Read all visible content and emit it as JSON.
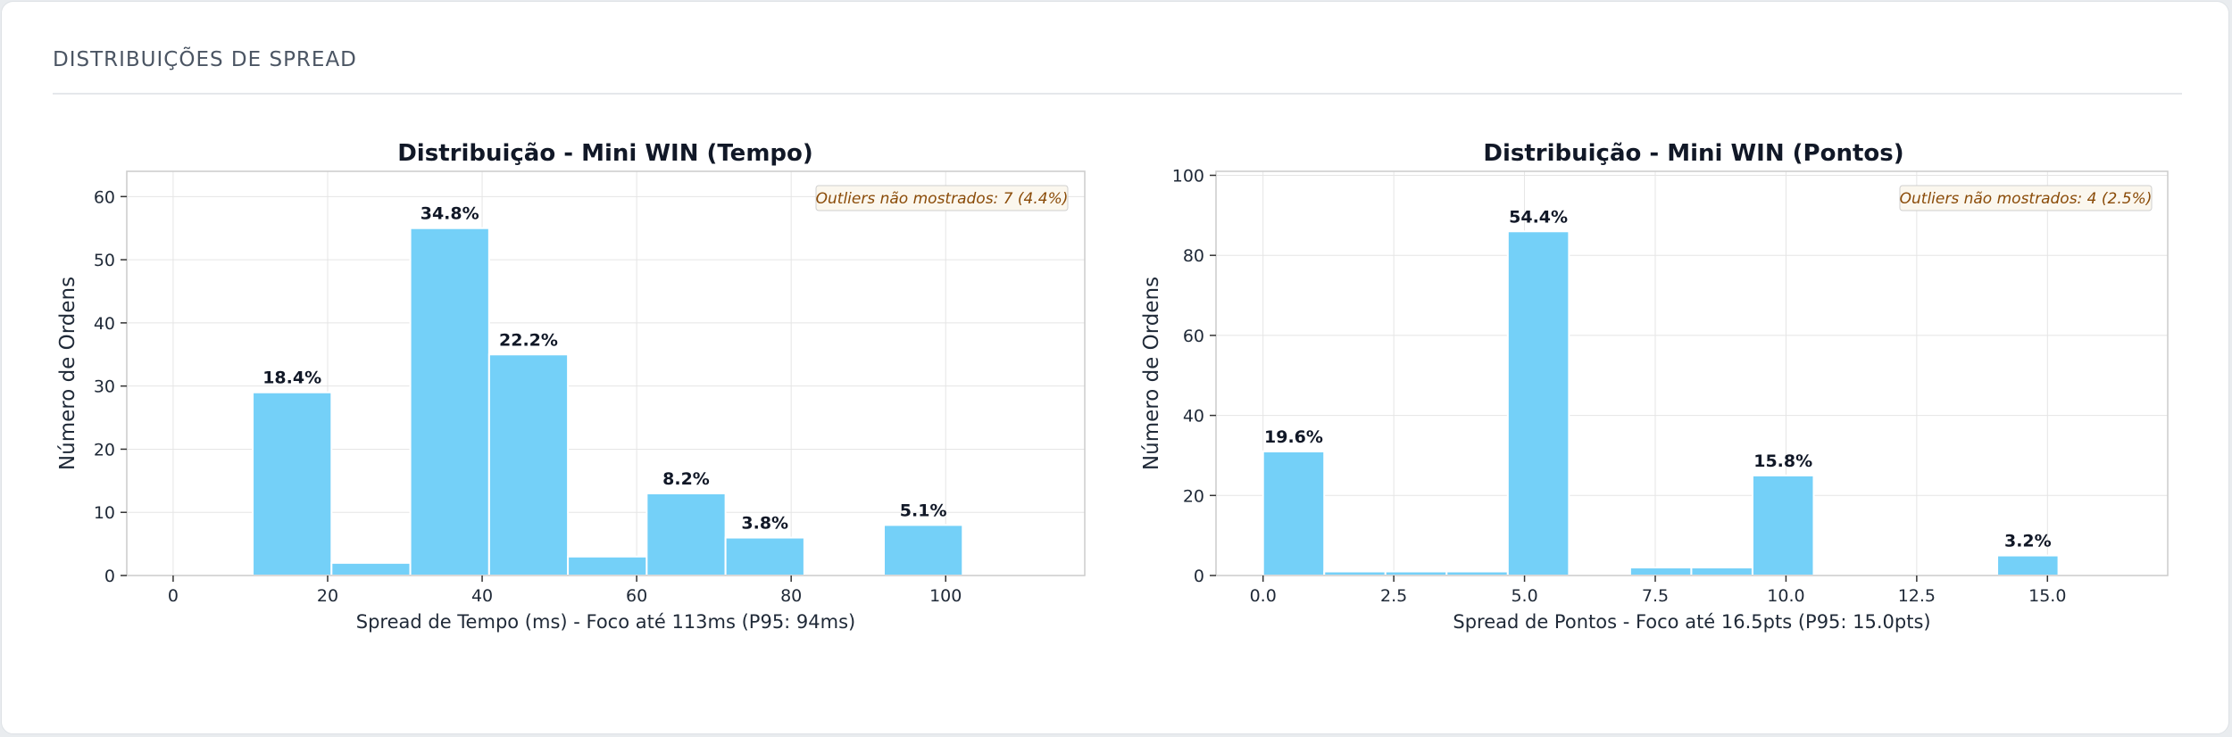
{
  "section": {
    "title": "DISTRIBUIÇÕES DE SPREAD"
  },
  "colors": {
    "bar": "#74d0f8",
    "bar_edge": "#ffffff",
    "grid": "#e5e5e5",
    "axes": "#cccccc",
    "outlier_text": "#8a4b08",
    "outlier_bg": "#fbf7ee"
  },
  "chart_data": [
    {
      "type": "bar",
      "title": "Distribuição - Mini WIN (Tempo)",
      "xlabel": "Spread de Tempo (ms) - Foco até 113ms (P95: 94ms)",
      "ylabel": "Número de Ordens",
      "xlim": [
        -6,
        118
      ],
      "ylim": [
        0,
        64
      ],
      "grid": true,
      "xticks": [
        0,
        20,
        40,
        60,
        80,
        100
      ],
      "xtick_labels": [
        "0",
        "20",
        "40",
        "60",
        "80",
        "100"
      ],
      "yticks": [
        0,
        10,
        20,
        30,
        40,
        50,
        60
      ],
      "ytick_labels": [
        "0",
        "10",
        "20",
        "30",
        "40",
        "50",
        "60"
      ],
      "bins": [
        {
          "x0": 10.3,
          "x1": 20.5,
          "count": 29,
          "label": "18.4%"
        },
        {
          "x0": 20.5,
          "x1": 30.7,
          "count": 2,
          "label": ""
        },
        {
          "x0": 30.7,
          "x1": 40.9,
          "count": 55,
          "label": "34.8%"
        },
        {
          "x0": 40.9,
          "x1": 51.1,
          "count": 35,
          "label": "22.2%"
        },
        {
          "x0": 51.1,
          "x1": 61.3,
          "count": 3,
          "label": ""
        },
        {
          "x0": 61.3,
          "x1": 71.5,
          "count": 13,
          "label": "8.2%"
        },
        {
          "x0": 71.5,
          "x1": 81.7,
          "count": 6,
          "label": "3.8%"
        },
        {
          "x0": 92.0,
          "x1": 102.2,
          "count": 8,
          "label": "5.1%"
        }
      ],
      "annotation": "Outliers não mostrados: 7 (4.4%)"
    },
    {
      "type": "bar",
      "title": "Distribuição - Mini WIN (Pontos)",
      "xlabel": "Spread de Pontos - Foco até 16.5pts (P95: 15.0pts)",
      "ylabel": "Número de Ordens",
      "xlim": [
        -0.9,
        17.3
      ],
      "ylim": [
        0,
        101
      ],
      "grid": true,
      "xticks": [
        0,
        2.5,
        5,
        7.5,
        10,
        12.5,
        15
      ],
      "xtick_labels": [
        "0.0",
        "2.5",
        "5.0",
        "7.5",
        "10.0",
        "12.5",
        "15.0"
      ],
      "yticks": [
        0,
        20,
        40,
        60,
        80,
        100
      ],
      "ytick_labels": [
        "0",
        "20",
        "40",
        "60",
        "80",
        "100"
      ],
      "bins": [
        {
          "x0": 0.0,
          "x1": 1.17,
          "count": 31,
          "label": "19.6%"
        },
        {
          "x0": 1.17,
          "x1": 2.34,
          "count": 1,
          "label": ""
        },
        {
          "x0": 2.34,
          "x1": 3.51,
          "count": 1,
          "label": ""
        },
        {
          "x0": 3.51,
          "x1": 4.68,
          "count": 1,
          "label": ""
        },
        {
          "x0": 4.68,
          "x1": 5.85,
          "count": 86,
          "label": "54.4%"
        },
        {
          "x0": 7.02,
          "x1": 8.19,
          "count": 2,
          "label": ""
        },
        {
          "x0": 8.19,
          "x1": 9.36,
          "count": 2,
          "label": ""
        },
        {
          "x0": 9.36,
          "x1": 10.53,
          "count": 25,
          "label": "15.8%"
        },
        {
          "x0": 14.04,
          "x1": 15.21,
          "count": 5,
          "label": "3.2%"
        }
      ],
      "annotation": "Outliers não mostrados: 4 (2.5%)"
    }
  ]
}
